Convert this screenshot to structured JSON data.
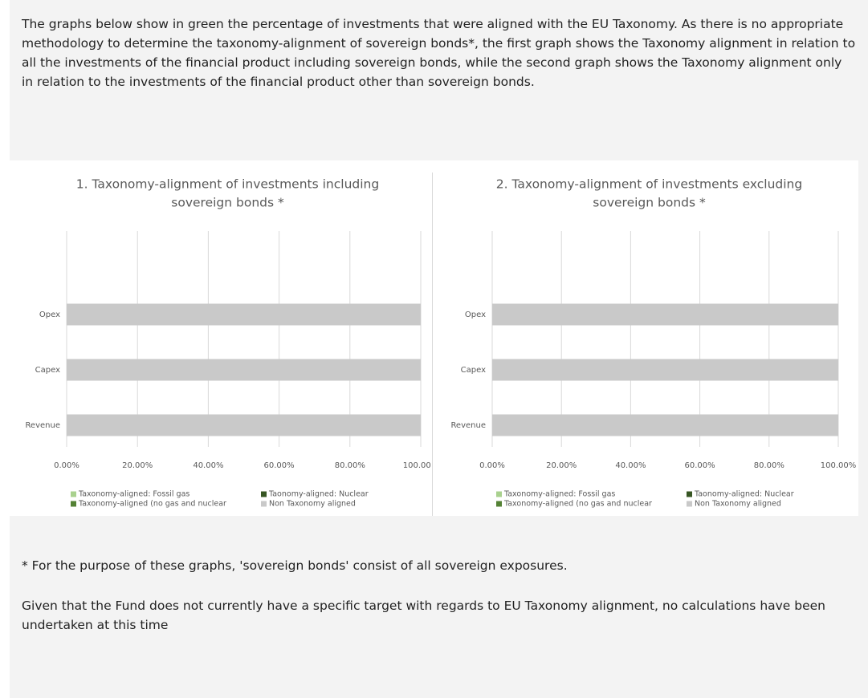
{
  "paragraphs": [
    "The graphs below show in green the percentage of investments that were aligned with the EU Taxonomy. As there is no appropriate methodology to determine the taxonomy-alignment of sovereign bonds*, the first graph shows the Taxonomy alignment in relation to all the investments of the financial product including sovereign bonds, while the second graph shows the Taxonomy alignment only in relation to the investments of the financial product other than sovereign bonds.",
    "* For the purpose of these graphs, 'sovereign bonds' consist of all sovereign exposures.",
    "Given that the Fund does not currently have a specific target with regards to EU Taxonomy alignment, no calculations have been undertaken at this time"
  ],
  "chart_data": [
    {
      "type": "stacked-bar-horizontal",
      "title": [
        "1. Taxonomy-alignment of investments including",
        "sovereign bonds *"
      ],
      "categories": [
        "Revenue",
        "Capex",
        "Opex"
      ],
      "series": [
        {
          "name": "Taxonomy-aligned: Fossil gas",
          "color": "#a9d18e",
          "values": [
            0,
            0,
            0
          ]
        },
        {
          "name": "Taonomy-aligned: Nuclear",
          "color": "#375623",
          "values": [
            0,
            0,
            0
          ]
        },
        {
          "name": "Taxonomy-aligned (no gas and nuclear",
          "color": "#548235",
          "values": [
            0,
            0,
            0
          ]
        },
        {
          "name": "Non Taxonomy aligned",
          "color": "#c9c9c9",
          "values": [
            100,
            100,
            100
          ]
        }
      ],
      "xlim": [
        0,
        100
      ],
      "xticks": [
        {
          "value": 0,
          "label": "0.00%"
        },
        {
          "value": 20,
          "label": "20.00%"
        },
        {
          "value": 40,
          "label": "40.00%"
        },
        {
          "value": 60,
          "label": "60.00%"
        },
        {
          "value": 80,
          "label": "80.00%"
        },
        {
          "value": 100,
          "label": "100.00%"
        }
      ],
      "grid": true,
      "legend": "bottom"
    },
    {
      "type": "stacked-bar-horizontal",
      "title": [
        "2. Taxonomy-alignment of investments excluding",
        "sovereign bonds *"
      ],
      "categories": [
        "Revenue",
        "Capex",
        "Opex"
      ],
      "series": [
        {
          "name": "Taxonomy-aligned: Fossil gas",
          "color": "#a9d18e",
          "values": [
            0,
            0,
            0
          ]
        },
        {
          "name": "Taonomy-aligned: Nuclear",
          "color": "#375623",
          "values": [
            0,
            0,
            0
          ]
        },
        {
          "name": "Taxonomy-aligned (no gas and nuclear",
          "color": "#548235",
          "values": [
            0,
            0,
            0
          ]
        },
        {
          "name": "Non Taxonomy aligned",
          "color": "#c9c9c9",
          "values": [
            100,
            100,
            100
          ]
        }
      ],
      "xlim": [
        0,
        100
      ],
      "xticks": [
        {
          "value": 0,
          "label": "0.00%"
        },
        {
          "value": 20,
          "label": "20.00%"
        },
        {
          "value": 40,
          "label": "40.00%"
        },
        {
          "value": 60,
          "label": "60.00%"
        },
        {
          "value": 80,
          "label": "80.00%"
        },
        {
          "value": 100,
          "label": "100.00%"
        }
      ],
      "grid": true,
      "legend": "bottom"
    }
  ]
}
